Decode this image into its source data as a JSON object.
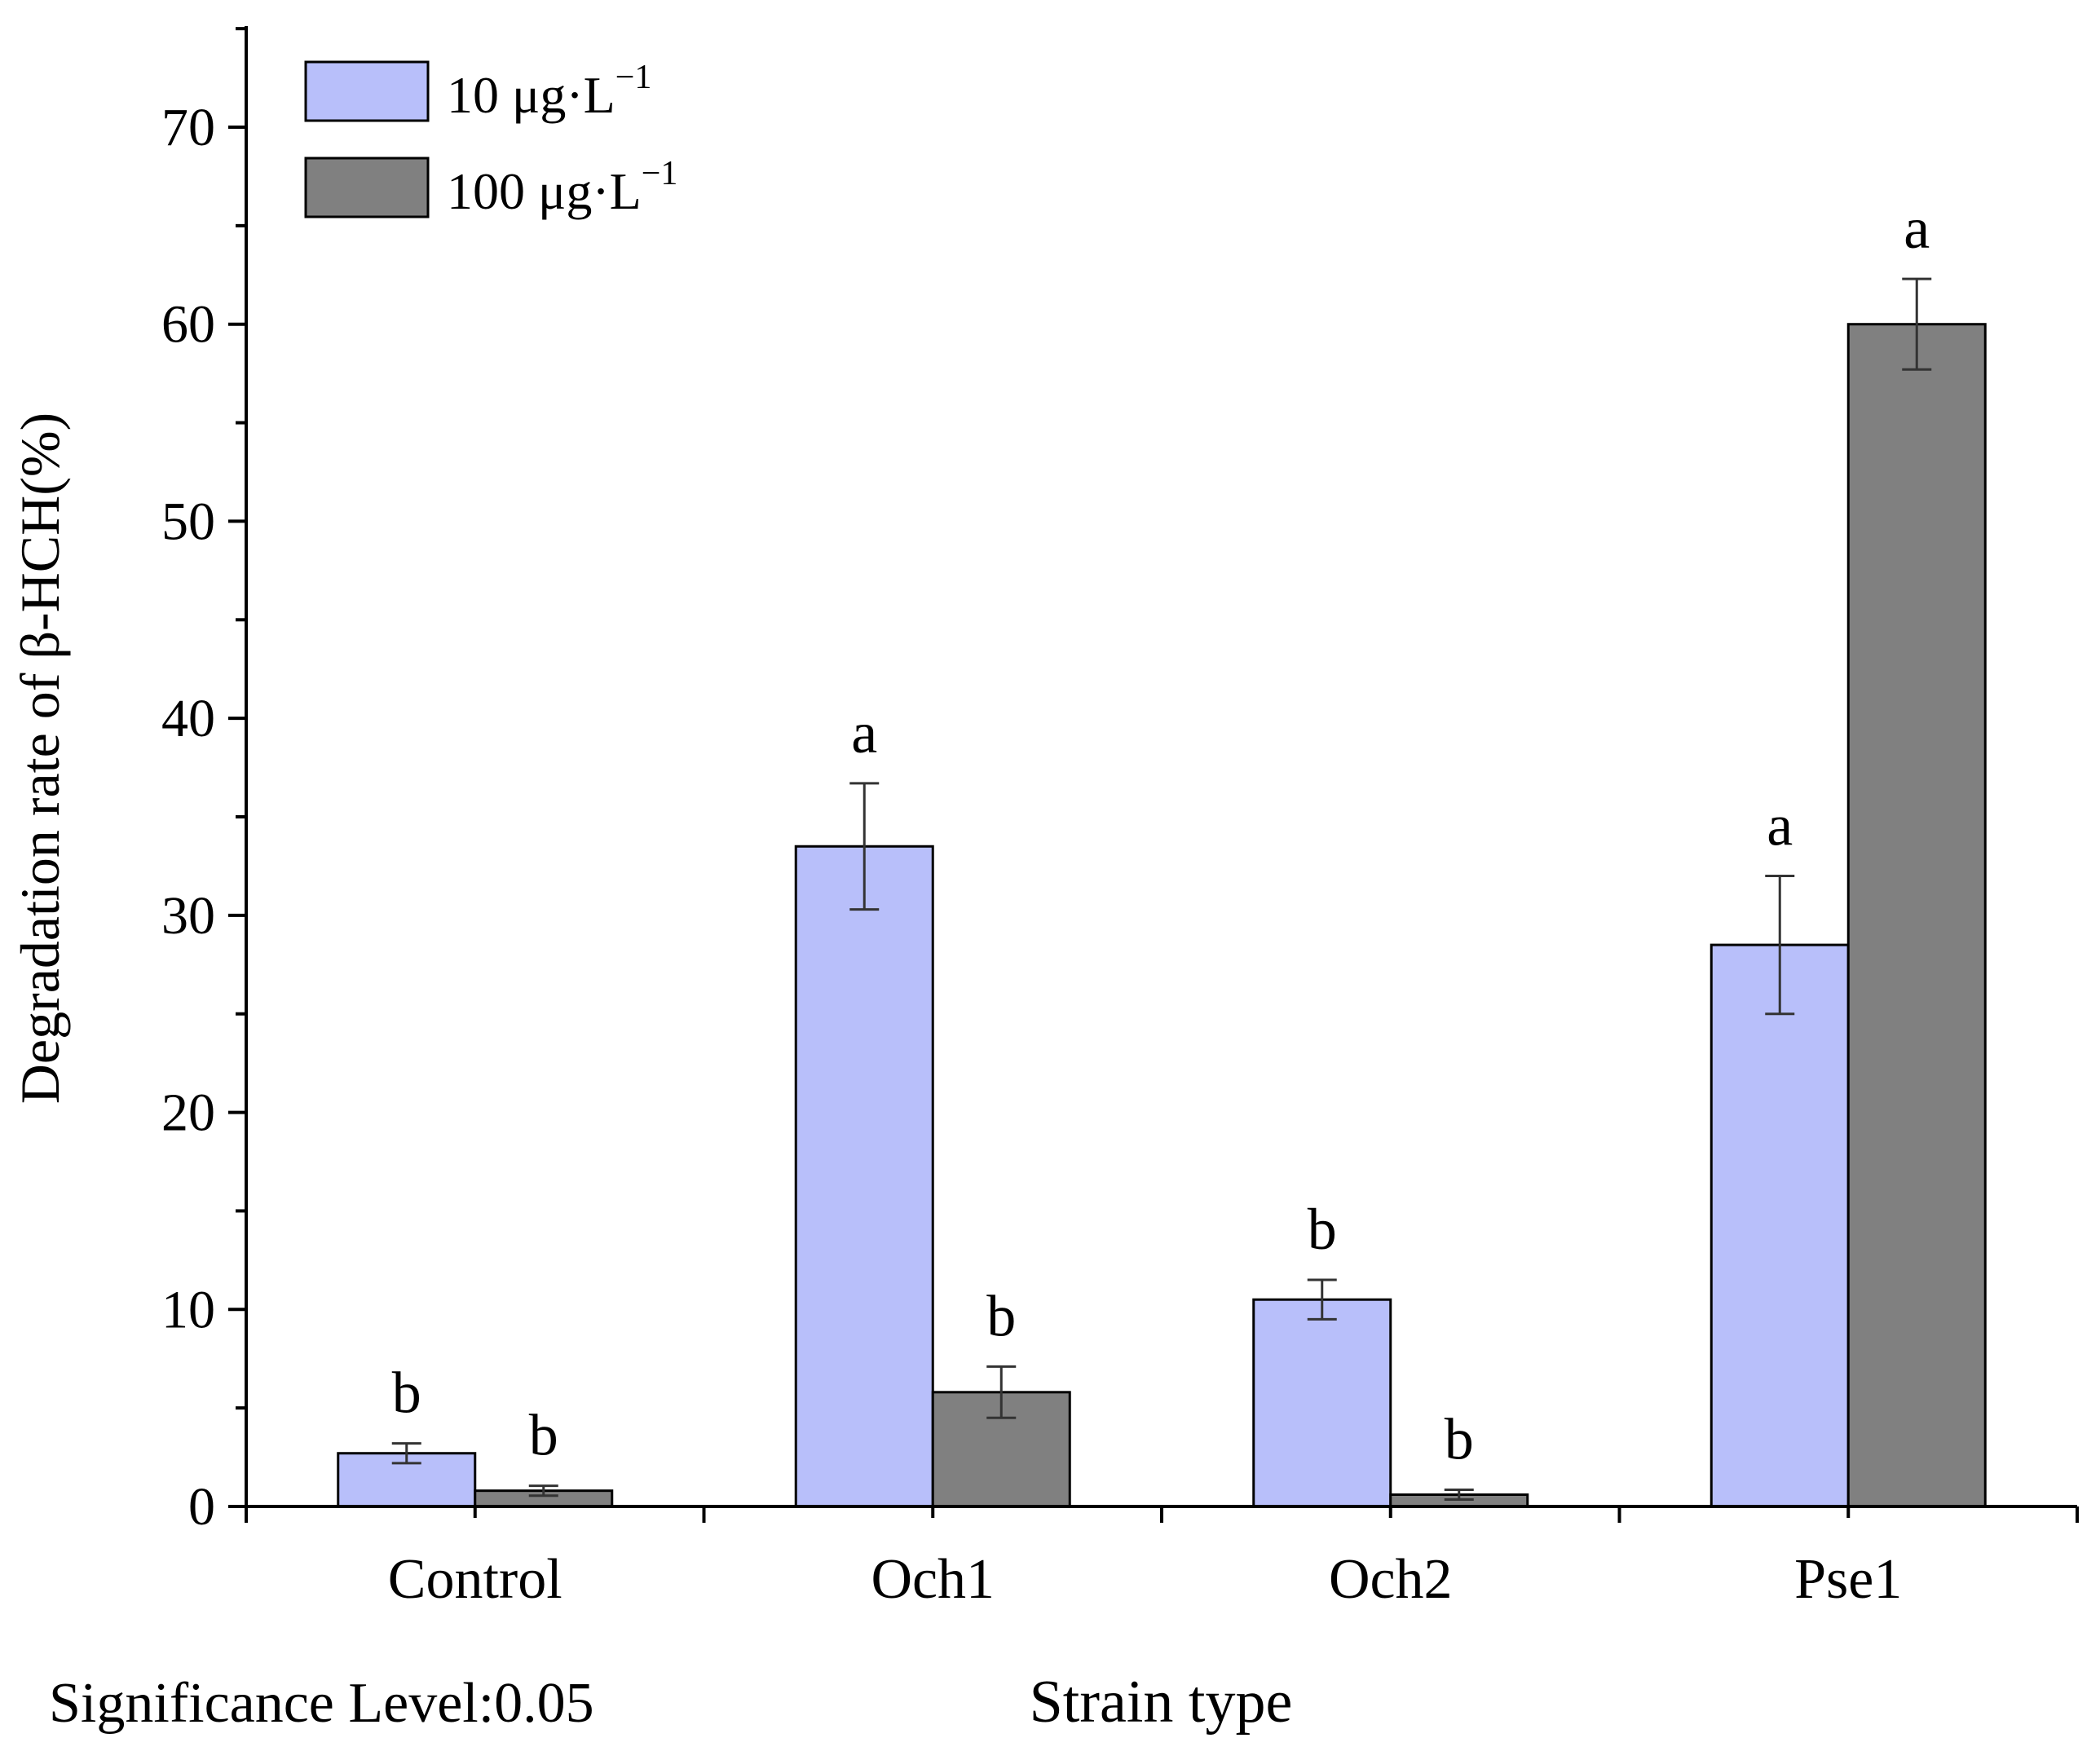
{
  "chart_data": {
    "type": "bar",
    "title": "",
    "xlabel": "Strain type",
    "ylabel": "Degradation rate of β-HCH(%)",
    "ylim": [
      0,
      75
    ],
    "yticks": [
      0,
      10,
      20,
      30,
      40,
      50,
      60,
      70
    ],
    "ytick_labels": [
      "0",
      "10",
      "20",
      "30",
      "40",
      "50",
      "60",
      "70"
    ],
    "categories": [
      "Control",
      "Och1",
      "Och2",
      "Pse1"
    ],
    "series": [
      {
        "name": "10 μg·L",
        "name_sup": "−1",
        "color": "#b8bffa",
        "values": [
          2.7,
          33.5,
          10.5,
          28.5
        ],
        "errors": [
          0.5,
          3.2,
          1.0,
          3.5
        ],
        "letters": [
          "b",
          "a",
          "b",
          "a"
        ]
      },
      {
        "name": "100 μg·L",
        "name_sup": "−1",
        "color": "#808080",
        "values": [
          0.8,
          5.8,
          0.6,
          60.0
        ],
        "errors": [
          0.25,
          1.3,
          0.25,
          2.3
        ],
        "letters": [
          "b",
          "b",
          "b",
          "a"
        ]
      }
    ],
    "legend_position": "top-left",
    "footnote": "Significance Level:0.05"
  }
}
